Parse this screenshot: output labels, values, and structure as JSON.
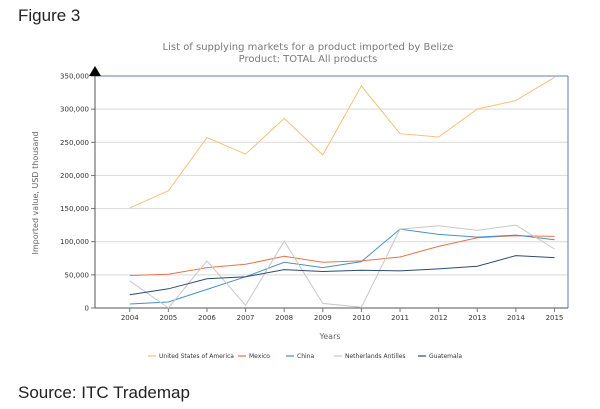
{
  "figure_label": "Figure 3",
  "source_label": "Source: ITC Trademap",
  "chart_data": {
    "type": "line",
    "title": "List of supplying markets for a product imported by Belize",
    "subtitle": "Product: TOTAL All products",
    "xlabel": "Years",
    "ylabel": "Imported value, USD thousand",
    "categories": [
      "2004",
      "2005",
      "2006",
      "2007",
      "2008",
      "2009",
      "2010",
      "2011",
      "2012",
      "2013",
      "2014",
      "2015"
    ],
    "y_ticks": [
      "0",
      "50,000",
      "100,000",
      "150,000",
      "200,000",
      "250,000",
      "300,000",
      "350,000"
    ],
    "ylim": [
      0,
      350000
    ],
    "grid": "horizontal",
    "legend_position": "bottom",
    "series": [
      {
        "name": "United States of America",
        "color": "#f5c07a",
        "values": [
          151000,
          177000,
          257000,
          232000,
          286000,
          231000,
          335000,
          263000,
          258000,
          300000,
          313000,
          348000
        ]
      },
      {
        "name": "Mexico",
        "color": "#e8734a",
        "values": [
          49000,
          51000,
          61000,
          66000,
          78000,
          69000,
          71000,
          77000,
          93000,
          106000,
          109000,
          108000
        ]
      },
      {
        "name": "China",
        "color": "#4a8fc2",
        "values": [
          6000,
          9000,
          28000,
          47000,
          69000,
          61000,
          70000,
          119000,
          111000,
          107000,
          110000,
          103000
        ]
      },
      {
        "name": "Netherlands Antilles",
        "color": "#c8c8c8",
        "values": [
          41000,
          0,
          71000,
          4000,
          101000,
          7000,
          1000,
          119000,
          124000,
          117000,
          125000,
          89000
        ]
      },
      {
        "name": "Guatemala",
        "color": "#2c4b6e",
        "values": [
          20000,
          29000,
          44000,
          47000,
          58000,
          55000,
          57000,
          56000,
          59000,
          63000,
          79000,
          76000
        ]
      }
    ]
  }
}
